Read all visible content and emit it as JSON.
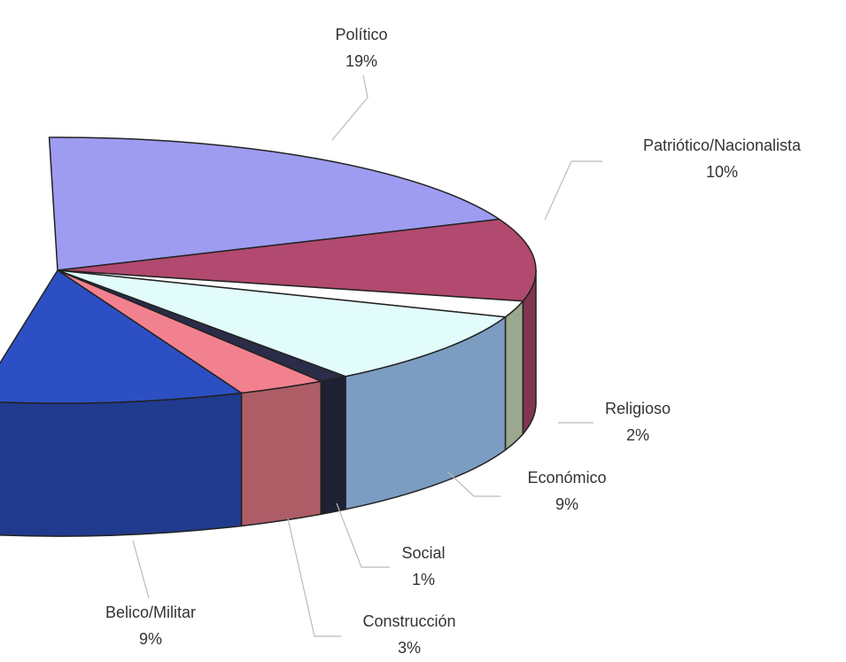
{
  "chart_data": {
    "type": "pie3d",
    "labels": [
      "Político",
      "Patriótico/Nacionalista",
      "Religioso",
      "Económico",
      "Social",
      "Construcción",
      "Belico/Militar"
    ],
    "values": [
      19,
      10,
      2,
      9,
      1,
      3,
      9
    ],
    "value_labels": [
      "19%",
      "10%",
      "2%",
      "9%",
      "1%",
      "3%",
      "9%"
    ],
    "colors": [
      "#9d9cf0",
      "#b2496f",
      "#ffffff",
      "#e2fbfb",
      "#2a2c48",
      "#f2818f",
      "#2c50c4"
    ]
  }
}
